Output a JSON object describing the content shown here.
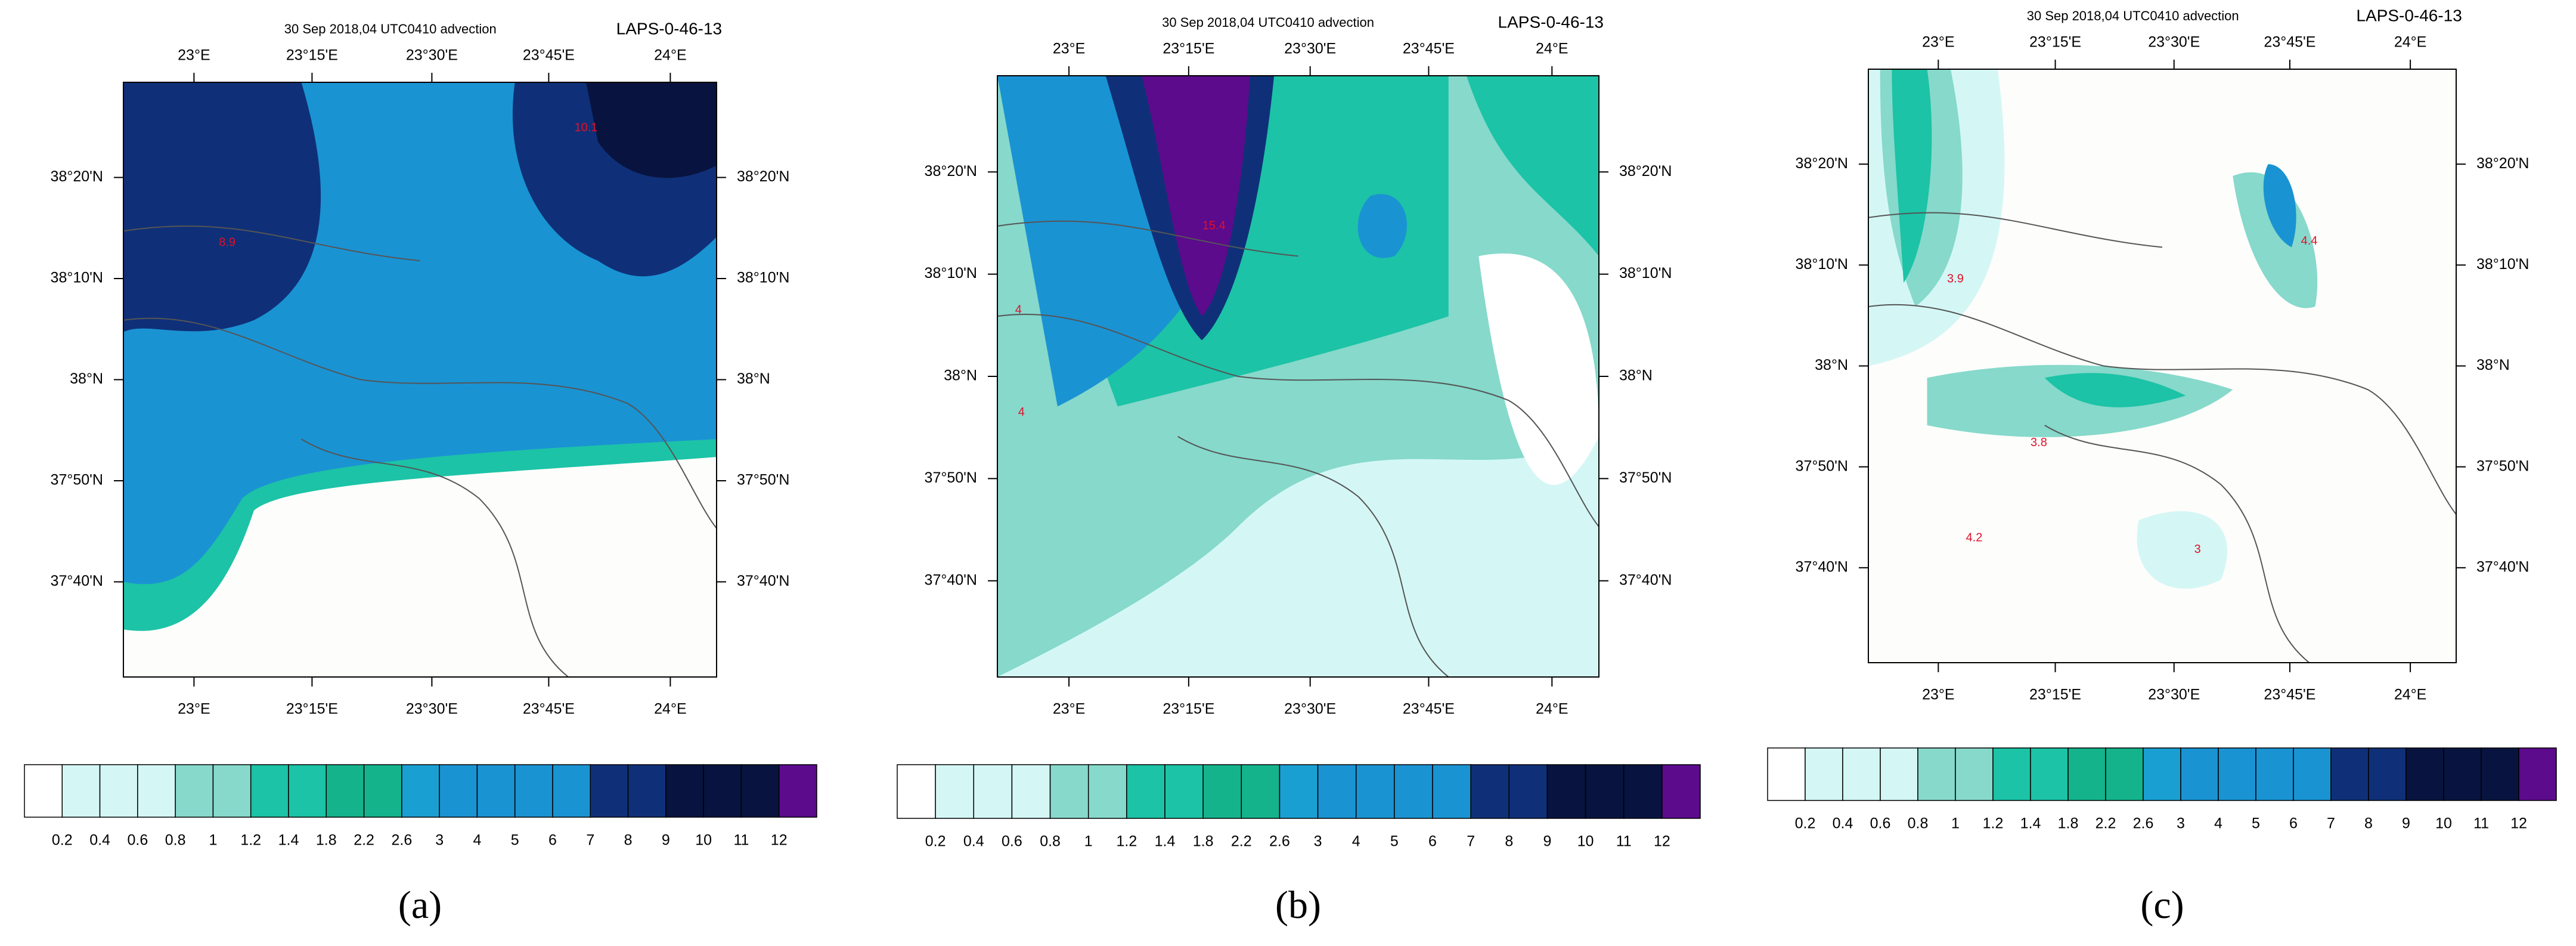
{
  "axes": {
    "title": "30 Sep 2018,04 UTC0410 advection",
    "source": "LAPS-0-46-13",
    "x_labels": [
      "23°E",
      "23°15'E",
      "23°30'E",
      "23°45'E",
      "24°E"
    ],
    "y_labels": [
      "38°20'N",
      "38°10'N",
      "38°N",
      "37°50'N",
      "37°40'N"
    ],
    "colorbar_labels": [
      "0.2",
      "0.4",
      "0.6",
      "0.8",
      "1",
      "1.2",
      "1.4",
      "1.8",
      "2.2",
      "2.6",
      "3",
      "4",
      "5",
      "6",
      "7",
      "8",
      "9",
      "10",
      "11",
      "12"
    ]
  },
  "panels": [
    {
      "caption": "(a)",
      "annotations": [
        "10.1",
        "8.9"
      ]
    },
    {
      "caption": "(b)",
      "annotations": [
        "15.4",
        "4",
        "4"
      ]
    },
    {
      "caption": "(c)",
      "annotations": [
        "3.9",
        "4.4",
        "3.8",
        "4.2",
        "3"
      ]
    }
  ]
}
